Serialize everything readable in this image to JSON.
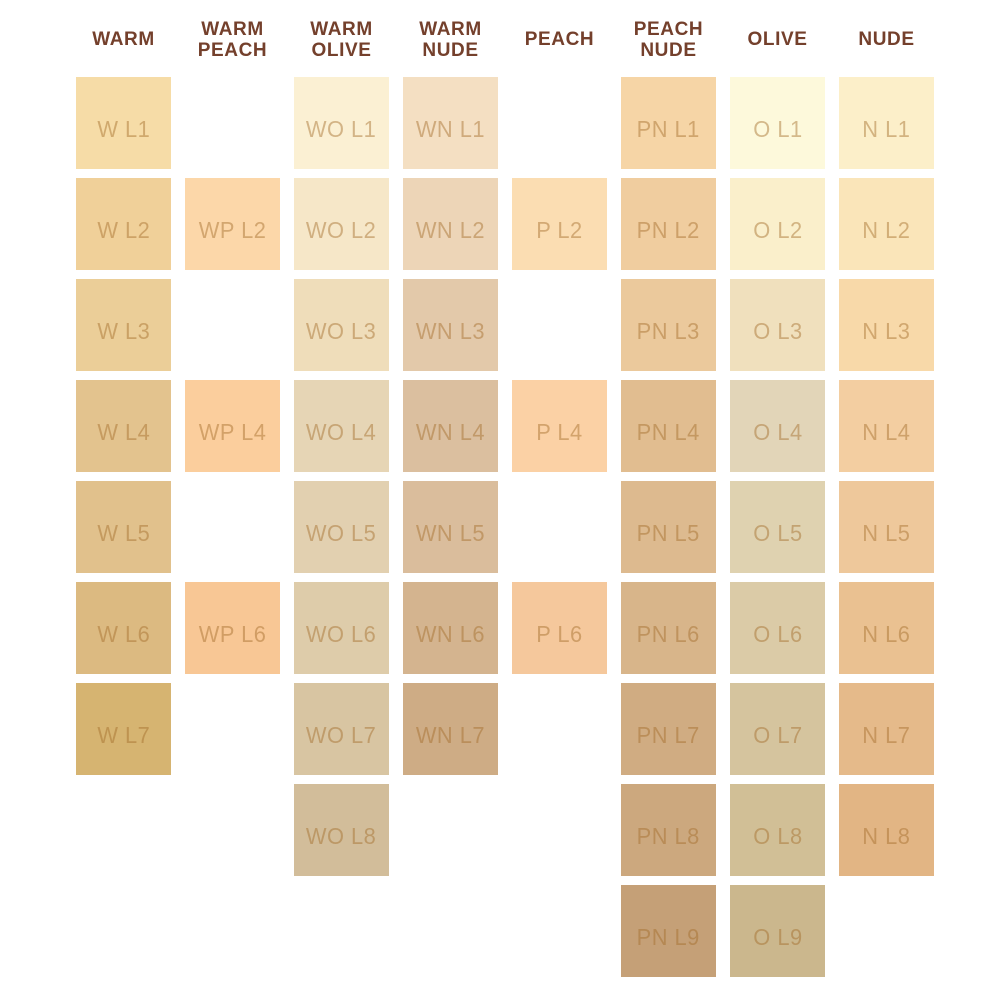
{
  "colors": {
    "background": "#FFFFFF",
    "header_text": "#74402C",
    "swatch_label_tint": "rgba(161,106,40,0.45)"
  },
  "chart_data": {
    "type": "table",
    "description": "Foundation shade chart: 8 undertone columns of light-level color swatches",
    "row_levels": [
      "L1",
      "L2",
      "L3",
      "L4",
      "L5",
      "L6",
      "L7",
      "L8",
      "L9"
    ],
    "columns": [
      {
        "id": "warm",
        "header": "WARM",
        "swatches": [
          {
            "code": "W L1",
            "row": 1,
            "color": "#F6DCA7"
          },
          {
            "code": "W L2",
            "row": 2,
            "color": "#F0D099"
          },
          {
            "code": "W L3",
            "row": 3,
            "color": "#EBCE98"
          },
          {
            "code": "W L4",
            "row": 4,
            "color": "#E3C38E"
          },
          {
            "code": "W L5",
            "row": 5,
            "color": "#E1C18C"
          },
          {
            "code": "W L6",
            "row": 6,
            "color": "#DCBA81"
          },
          {
            "code": "W L7",
            "row": 7,
            "color": "#D6B471"
          }
        ]
      },
      {
        "id": "warm-peach",
        "header": "WARM\nPEACH",
        "swatches": [
          {
            "code": "WP L2",
            "row": 2,
            "color": "#FCD7A9"
          },
          {
            "code": "WP L4",
            "row": 4,
            "color": "#FBCE9D"
          },
          {
            "code": "WP L6",
            "row": 6,
            "color": "#F8C795"
          }
        ]
      },
      {
        "id": "warm-olive",
        "header": "WARM\nOLIVE",
        "swatches": [
          {
            "code": "WO L1",
            "row": 1,
            "color": "#FBF0D3"
          },
          {
            "code": "WO L2",
            "row": 2,
            "color": "#F6E7C8"
          },
          {
            "code": "WO L3",
            "row": 3,
            "color": "#EFDDBA"
          },
          {
            "code": "WO L4",
            "row": 4,
            "color": "#E6D5B5"
          },
          {
            "code": "WO L5",
            "row": 5,
            "color": "#E2D0B0"
          },
          {
            "code": "WO L6",
            "row": 6,
            "color": "#DECCAA"
          },
          {
            "code": "WO L7",
            "row": 7,
            "color": "#D8C5A2"
          },
          {
            "code": "WO L8",
            "row": 8,
            "color": "#D2BD9A"
          }
        ]
      },
      {
        "id": "warm-nude",
        "header": "WARM\nNUDE",
        "swatches": [
          {
            "code": "WN L1",
            "row": 1,
            "color": "#F4DFC2"
          },
          {
            "code": "WN L2",
            "row": 2,
            "color": "#EDD5B7"
          },
          {
            "code": "WN L3",
            "row": 3,
            "color": "#E3C9AA"
          },
          {
            "code": "WN L4",
            "row": 4,
            "color": "#DBBF9F"
          },
          {
            "code": "WN L5",
            "row": 5,
            "color": "#DABD9C"
          },
          {
            "code": "WN L6",
            "row": 6,
            "color": "#D4B48F"
          },
          {
            "code": "WN L7",
            "row": 7,
            "color": "#CEAC85"
          }
        ]
      },
      {
        "id": "peach",
        "header": "PEACH",
        "swatches": [
          {
            "code": "P L2",
            "row": 2,
            "color": "#FBDDB2"
          },
          {
            "code": "P L4",
            "row": 4,
            "color": "#FBD1A5"
          },
          {
            "code": "P L6",
            "row": 6,
            "color": "#F5C89C"
          }
        ]
      },
      {
        "id": "peach-nude",
        "header": "PEACH\nNUDE",
        "swatches": [
          {
            "code": "PN L1",
            "row": 1,
            "color": "#F6D5A6"
          },
          {
            "code": "PN L2",
            "row": 2,
            "color": "#F0CD9F"
          },
          {
            "code": "PN L3",
            "row": 3,
            "color": "#EBC99C"
          },
          {
            "code": "PN L4",
            "row": 4,
            "color": "#E1BD90"
          },
          {
            "code": "PN L5",
            "row": 5,
            "color": "#DDBA8F"
          },
          {
            "code": "PN L6",
            "row": 6,
            "color": "#D8B58A"
          },
          {
            "code": "PN L7",
            "row": 7,
            "color": "#D0AC82"
          },
          {
            "code": "PN L8",
            "row": 8,
            "color": "#CCA87E"
          },
          {
            "code": "PN L9",
            "row": 9,
            "color": "#C5A077"
          }
        ]
      },
      {
        "id": "olive",
        "header": "OLIVE",
        "swatches": [
          {
            "code": "O L1",
            "row": 1,
            "color": "#FDF9DB"
          },
          {
            "code": "O L2",
            "row": 2,
            "color": "#FAEFCB"
          },
          {
            "code": "O L3",
            "row": 3,
            "color": "#F0E0BD"
          },
          {
            "code": "O L4",
            "row": 4,
            "color": "#E2D5B8"
          },
          {
            "code": "O L5",
            "row": 5,
            "color": "#DFD2B0"
          },
          {
            "code": "O L6",
            "row": 6,
            "color": "#DBCBA7"
          },
          {
            "code": "O L7",
            "row": 7,
            "color": "#D5C49E"
          },
          {
            "code": "O L8",
            "row": 8,
            "color": "#D1BF96"
          },
          {
            "code": "O L9",
            "row": 9,
            "color": "#CBB78D"
          }
        ]
      },
      {
        "id": "nude",
        "header": "NUDE",
        "swatches": [
          {
            "code": "N L1",
            "row": 1,
            "color": "#FCEFC9"
          },
          {
            "code": "N L2",
            "row": 2,
            "color": "#FAE5B9"
          },
          {
            "code": "N L3",
            "row": 3,
            "color": "#F8D9A9"
          },
          {
            "code": "N L4",
            "row": 4,
            "color": "#F3CEA1"
          },
          {
            "code": "N L5",
            "row": 5,
            "color": "#EEC89B"
          },
          {
            "code": "N L6",
            "row": 6,
            "color": "#EAC191"
          },
          {
            "code": "N L7",
            "row": 7,
            "color": "#E5BA8A"
          },
          {
            "code": "N L8",
            "row": 8,
            "color": "#E2B584"
          }
        ]
      }
    ]
  }
}
